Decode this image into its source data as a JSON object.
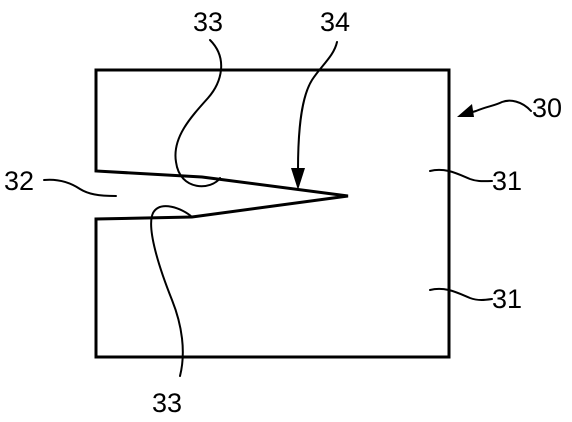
{
  "figure": {
    "labels": {
      "block": "30",
      "body_upper": "31",
      "body_lower": "31",
      "slot": "32",
      "edge_upper": "33",
      "edge_lower": "33",
      "tip": "34"
    },
    "colors": {
      "ink": "#000000",
      "background": "#ffffff"
    }
  }
}
